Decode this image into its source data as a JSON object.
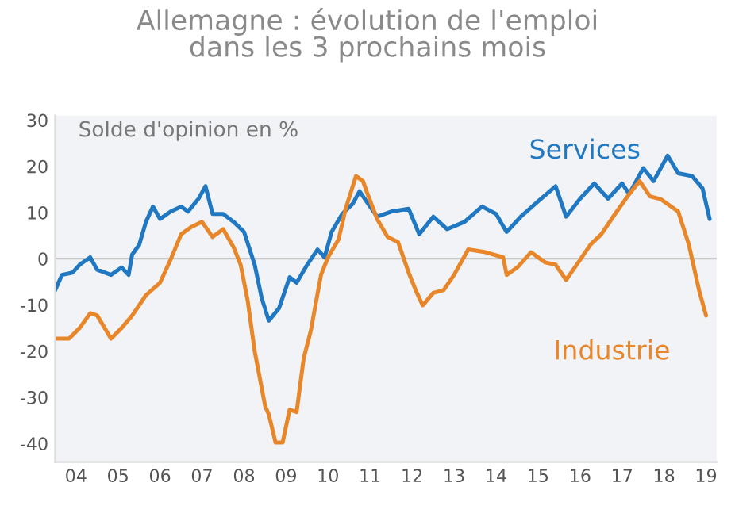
{
  "chart_data": {
    "type": "line",
    "title": "Allemagne : évolution de l'emploi\ndans les 3 prochains mois",
    "ylabel": "Solde d'opinion en %",
    "xlim": [
      "2004-01",
      "2019-10"
    ],
    "ylim": [
      -44,
      31
    ],
    "xticks": [
      {
        "value": "2004-07",
        "label": "04"
      },
      {
        "value": "2005-07",
        "label": "05"
      },
      {
        "value": "2006-07",
        "label": "06"
      },
      {
        "value": "2007-07",
        "label": "07"
      },
      {
        "value": "2008-07",
        "label": "08"
      },
      {
        "value": "2009-07",
        "label": "09"
      },
      {
        "value": "2010-07",
        "label": "10"
      },
      {
        "value": "2011-07",
        "label": "11"
      },
      {
        "value": "2012-07",
        "label": "12"
      },
      {
        "value": "2013-07",
        "label": "13"
      },
      {
        "value": "2014-07",
        "label": "14"
      },
      {
        "value": "2015-07",
        "label": "15"
      },
      {
        "value": "2016-07",
        "label": "16"
      },
      {
        "value": "2017-07",
        "label": "17"
      },
      {
        "value": "2018-07",
        "label": "18"
      },
      {
        "value": "2019-07",
        "label": "19"
      }
    ],
    "yticks": [
      -40,
      -30,
      -20,
      -10,
      0,
      10,
      20,
      30
    ],
    "grid": false,
    "legend": false,
    "ref_lines": [
      {
        "axis": "y",
        "value": 0,
        "color": "#c8c8c8"
      }
    ],
    "series": [
      {
        "name": "Services",
        "color": "#1f78c1",
        "x": [
          "2004-01",
          "2004-03",
          "2004-06",
          "2004-08",
          "2004-11",
          "2005-01",
          "2005-05",
          "2005-08",
          "2005-10",
          "2005-11",
          "2006-01",
          "2006-03",
          "2006-05",
          "2006-07",
          "2006-10",
          "2007-01",
          "2007-03",
          "2007-06",
          "2007-08",
          "2007-10",
          "2008-01",
          "2008-04",
          "2008-07",
          "2008-10",
          "2008-12",
          "2009-02",
          "2009-05",
          "2009-08",
          "2009-10",
          "2010-01",
          "2010-04",
          "2010-06",
          "2010-08",
          "2010-11",
          "2011-02",
          "2011-04",
          "2011-07",
          "2011-09",
          "2012-01",
          "2012-06",
          "2012-09",
          "2013-01",
          "2013-05",
          "2013-10",
          "2014-03",
          "2014-07",
          "2014-10",
          "2015-02",
          "2015-07",
          "2015-12",
          "2016-03",
          "2016-07",
          "2016-11",
          "2017-03",
          "2017-07",
          "2017-09",
          "2018-01",
          "2018-04",
          "2018-08",
          "2018-11",
          "2019-03",
          "2019-06",
          "2019-08"
        ],
        "values": [
          -6.8,
          -3.5,
          -3,
          -1.3,
          0.3,
          -2.4,
          -3.5,
          -1.9,
          -3.5,
          0.9,
          3,
          8,
          11.3,
          8.6,
          10.2,
          11.3,
          10.2,
          13,
          15.7,
          9.7,
          9.7,
          8,
          5.8,
          -1.3,
          -8.5,
          -13.4,
          -10.7,
          -4,
          -5.2,
          -1.3,
          2,
          0.3,
          5.8,
          9.7,
          11.9,
          14.6,
          11.3,
          9.1,
          10.2,
          10.8,
          5.3,
          9.1,
          6.4,
          8,
          11.3,
          9.7,
          5.8,
          9.1,
          12.4,
          15.7,
          9.1,
          13,
          16.3,
          13,
          16.3,
          14,
          19.6,
          16.8,
          22.3,
          18.5,
          17.9,
          15.2,
          8.6
        ]
      },
      {
        "name": "Industrie",
        "color": "#e8862a",
        "x": [
          "2004-01",
          "2004-05",
          "2004-08",
          "2004-11",
          "2005-01",
          "2005-05",
          "2005-08",
          "2005-11",
          "2006-03",
          "2006-07",
          "2006-10",
          "2007-01",
          "2007-04",
          "2007-07",
          "2007-10",
          "2008-01",
          "2008-04",
          "2008-06",
          "2008-08",
          "2008-10",
          "2009-01",
          "2009-02",
          "2009-04",
          "2009-06",
          "2009-08",
          "2009-10",
          "2009-12",
          "2010-02",
          "2010-05",
          "2010-07",
          "2010-10",
          "2010-12",
          "2011-03",
          "2011-05",
          "2011-06",
          "2011-09",
          "2011-12",
          "2012-03",
          "2012-06",
          "2012-08",
          "2012-10",
          "2013-01",
          "2013-04",
          "2013-07",
          "2013-11",
          "2014-04",
          "2014-09",
          "2014-10",
          "2015-01",
          "2015-05",
          "2015-09",
          "2015-12",
          "2016-03",
          "2016-06",
          "2016-10",
          "2017-01",
          "2017-05",
          "2017-09",
          "2017-12",
          "2018-03",
          "2018-06",
          "2018-11",
          "2019-02",
          "2019-05",
          "2019-07"
        ],
        "values": [
          -17.3,
          -17.3,
          -15,
          -11.8,
          -12.3,
          -17.3,
          -15,
          -12.3,
          -7.9,
          -5.2,
          -0.2,
          5.3,
          6.9,
          8,
          4.7,
          6.4,
          2.5,
          -1.3,
          -9,
          -20,
          -32,
          -33.7,
          -39.8,
          -39.8,
          -32.7,
          -33.2,
          -21.6,
          -15.6,
          -3.5,
          0.3,
          4.2,
          10.8,
          17.9,
          16.8,
          14.6,
          8.6,
          4.7,
          3.6,
          -3,
          -6.8,
          -10.1,
          -7.4,
          -6.8,
          -3.5,
          2,
          1.4,
          0.3,
          -3.5,
          -1.9,
          1.4,
          -0.8,
          -1.3,
          -4.6,
          -1.3,
          3.1,
          5.3,
          9.7,
          14,
          16.8,
          13.5,
          12.9,
          10.2,
          3.1,
          -6.8,
          -12.3
        ]
      }
    ]
  }
}
